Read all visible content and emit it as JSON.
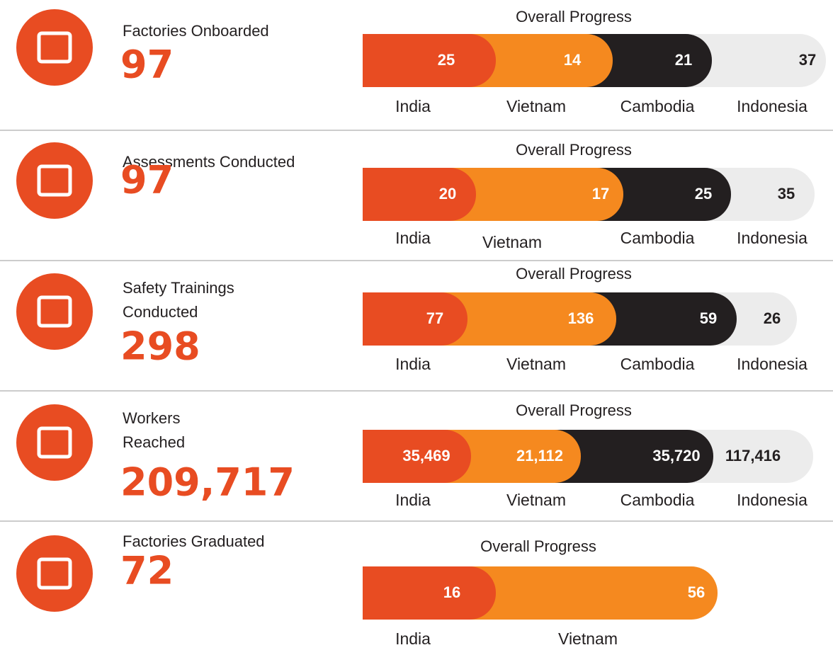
{
  "rows": [
    {
      "label_lines": [
        "Factories Onboarded"
      ],
      "total": "97",
      "progress_title": "Overall Progress",
      "segments": [
        {
          "country": "India",
          "value": "25"
        },
        {
          "country": "Vietnam",
          "value": "14"
        },
        {
          "country": "Cambodia",
          "value": "21"
        },
        {
          "country": "Indonesia",
          "value": "37"
        }
      ]
    },
    {
      "label_lines": [
        "Assessments Conducted"
      ],
      "total": "97",
      "progress_title": "Overall Progress",
      "segments": [
        {
          "country": "India",
          "value": "20"
        },
        {
          "country": "Vietnam",
          "value": "17"
        },
        {
          "country": "Cambodia",
          "value": "25"
        },
        {
          "country": "Indonesia",
          "value": "35"
        }
      ]
    },
    {
      "label_lines": [
        "Safety Trainings",
        "Conducted"
      ],
      "total": "298",
      "progress_title": "Overall Progress",
      "segments": [
        {
          "country": "India",
          "value": "77"
        },
        {
          "country": "Vietnam",
          "value": "136"
        },
        {
          "country": "Cambodia",
          "value": "59"
        },
        {
          "country": "Indonesia",
          "value": "26"
        }
      ]
    },
    {
      "label_lines": [
        "Workers",
        "Reached"
      ],
      "total": "209,717",
      "progress_title": "Overall Progress",
      "segments": [
        {
          "country": "India",
          "value": "35,469"
        },
        {
          "country": "Vietnam",
          "value": "21,112"
        },
        {
          "country": "Cambodia",
          "value": "35,720"
        },
        {
          "country": "Indonesia",
          "value": "117,416"
        }
      ]
    },
    {
      "label_lines": [
        "Factories Graduated"
      ],
      "total": "72",
      "progress_title": "Overall Progress",
      "segments": [
        {
          "country": "India",
          "value": "16"
        },
        {
          "country": "Vietnam",
          "value": "56"
        }
      ]
    }
  ]
}
